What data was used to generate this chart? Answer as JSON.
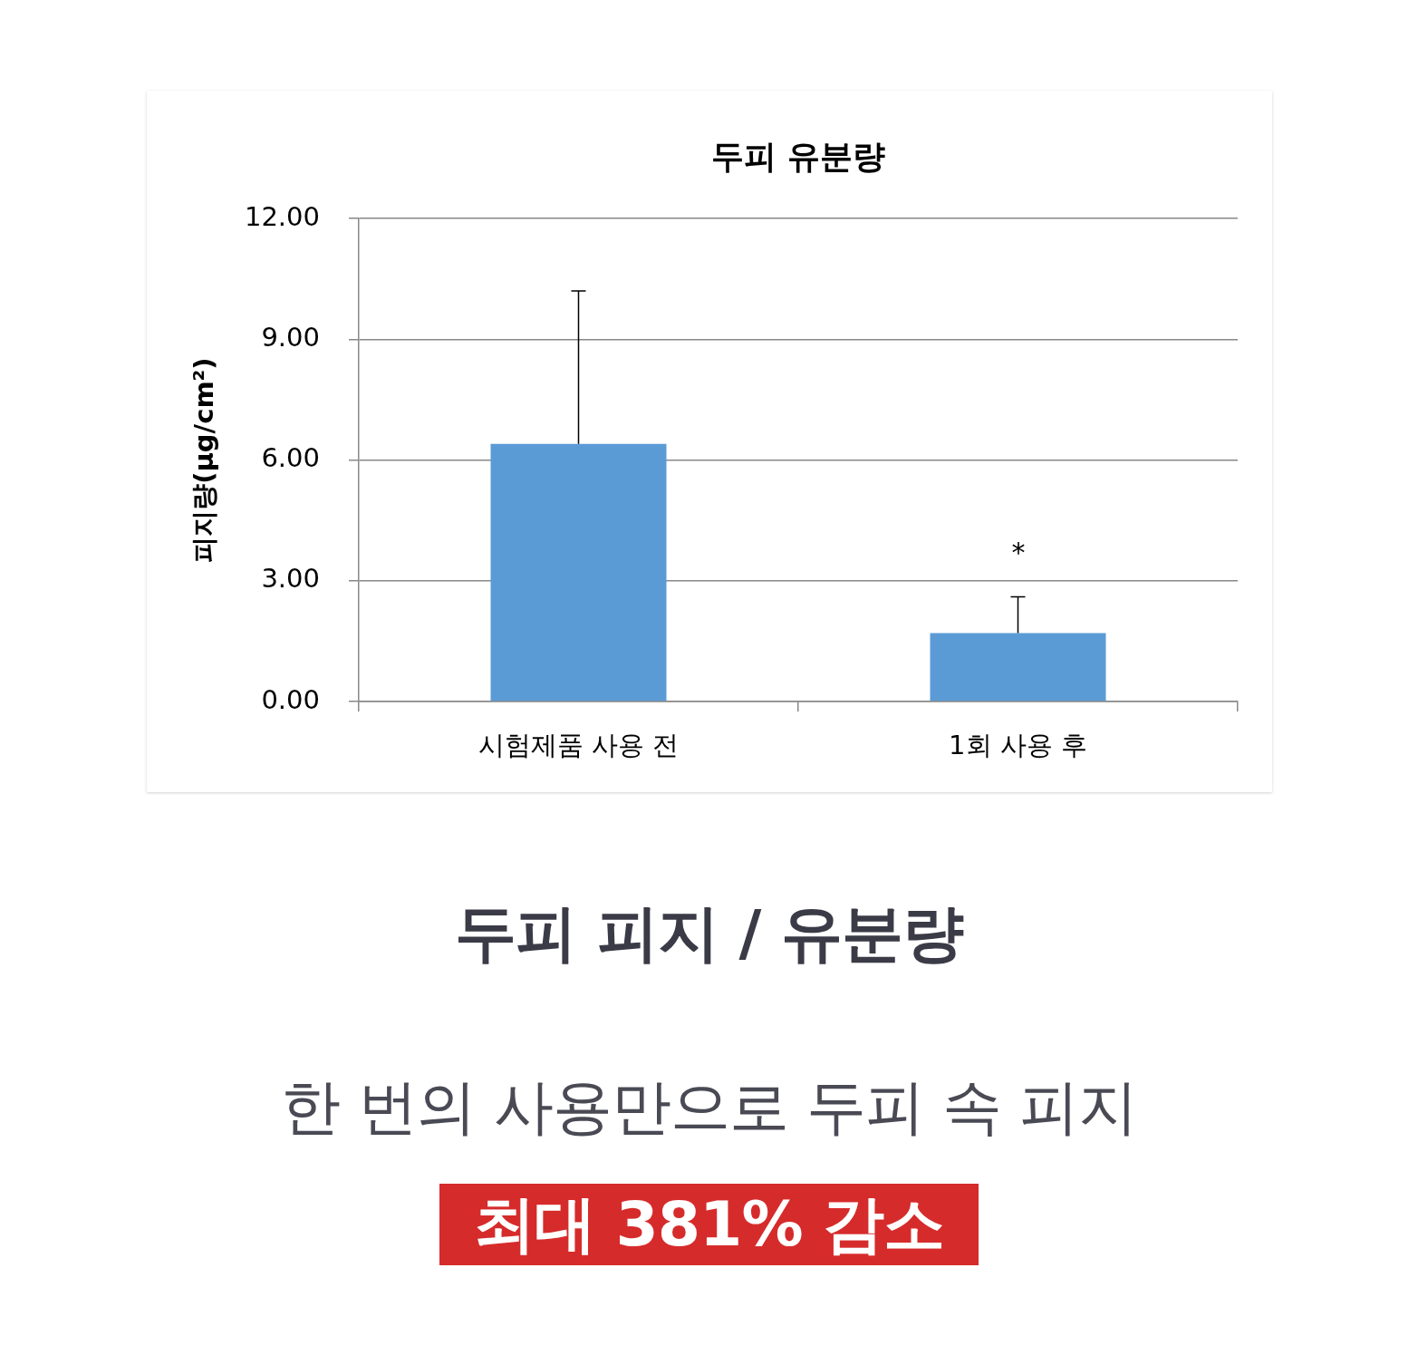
{
  "chart_data": {
    "type": "bar",
    "title": "두피 유분량",
    "ylabel": "피지량(µg/cm²)",
    "categories": [
      "시험제품 사용 전",
      "1회 사용 후"
    ],
    "values": [
      6.4,
      1.7
    ],
    "color": "#5b9bd5",
    "errors": [
      [
        6.4,
        10.2
      ],
      [
        1.7,
        2.6
      ]
    ],
    "ylim": [
      0,
      12
    ],
    "yticks": [
      {
        "value": 0,
        "label": "0.00"
      },
      {
        "value": 3,
        "label": "3.00"
      },
      {
        "value": 6,
        "label": "6.00"
      },
      {
        "value": 9,
        "label": "9.00"
      },
      {
        "value": 12,
        "label": "12.00"
      }
    ],
    "grid": "y",
    "annotations": [
      "*",
      "두피 피지 / 유분량",
      "한 번의 사용만으로 두피 속 피지",
      "최대 381% 감소"
    ]
  }
}
